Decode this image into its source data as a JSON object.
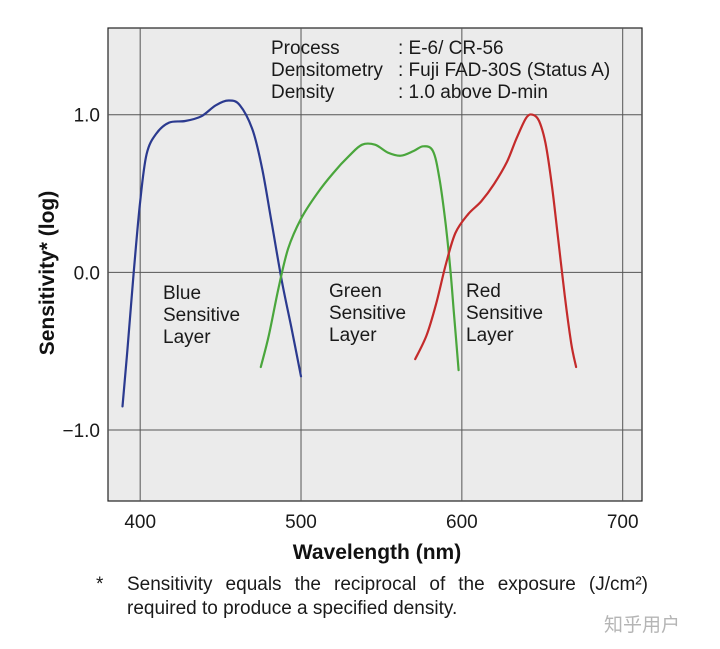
{
  "chart_data": {
    "type": "line",
    "xlabel": "Wavelength (nm)",
    "ylabel": "Sensitivity* (log)",
    "xlim": [
      380,
      712
    ],
    "ylim": [
      -1.45,
      1.55
    ],
    "x_ticks": [
      400,
      500,
      600,
      700
    ],
    "x_tick_labels": [
      "400",
      "500",
      "600",
      "700"
    ],
    "y_ticks": [
      1.0,
      0.0,
      -1.0
    ],
    "y_tick_labels": [
      "1.0",
      "0.0",
      "−1.0"
    ],
    "grid": true,
    "info": [
      {
        "key": "Process",
        "value": ": E-6/ CR-56"
      },
      {
        "key": "Densitometry",
        "value": ": Fuji FAD-30S (Status A)"
      },
      {
        "key": "Density",
        "value": ": 1.0 above D-min"
      }
    ],
    "series": [
      {
        "label_lines": [
          "Blue",
          "Sensitive",
          "Layer"
        ],
        "color": "#2b3a8f",
        "points": [
          [
            389,
            -0.85
          ],
          [
            392,
            -0.5
          ],
          [
            396,
            0.0
          ],
          [
            400,
            0.45
          ],
          [
            404,
            0.75
          ],
          [
            410,
            0.88
          ],
          [
            418,
            0.95
          ],
          [
            428,
            0.96
          ],
          [
            438,
            0.99
          ],
          [
            447,
            1.06
          ],
          [
            455,
            1.09
          ],
          [
            462,
            1.06
          ],
          [
            470,
            0.9
          ],
          [
            476,
            0.65
          ],
          [
            482,
            0.3
          ],
          [
            488,
            -0.05
          ],
          [
            494,
            -0.35
          ],
          [
            500,
            -0.66
          ]
        ]
      },
      {
        "label_lines": [
          "Green",
          "Sensitive",
          "Layer"
        ],
        "color": "#4aa63c",
        "points": [
          [
            475,
            -0.6
          ],
          [
            480,
            -0.4
          ],
          [
            486,
            -0.1
          ],
          [
            492,
            0.15
          ],
          [
            500,
            0.34
          ],
          [
            510,
            0.5
          ],
          [
            520,
            0.63
          ],
          [
            530,
            0.74
          ],
          [
            538,
            0.81
          ],
          [
            546,
            0.81
          ],
          [
            554,
            0.76
          ],
          [
            562,
            0.74
          ],
          [
            570,
            0.77
          ],
          [
            576,
            0.8
          ],
          [
            582,
            0.77
          ],
          [
            586,
            0.6
          ],
          [
            590,
            0.3
          ],
          [
            593,
            0.0
          ],
          [
            595,
            -0.25
          ],
          [
            598,
            -0.62
          ]
        ]
      },
      {
        "label_lines": [
          "Red",
          "Sensitive",
          "Layer"
        ],
        "color": "#c42b2b",
        "points": [
          [
            571,
            -0.55
          ],
          [
            578,
            -0.4
          ],
          [
            584,
            -0.2
          ],
          [
            590,
            0.05
          ],
          [
            596,
            0.25
          ],
          [
            604,
            0.37
          ],
          [
            612,
            0.45
          ],
          [
            620,
            0.56
          ],
          [
            628,
            0.7
          ],
          [
            634,
            0.85
          ],
          [
            640,
            0.98
          ],
          [
            644,
            1.0
          ],
          [
            648,
            0.96
          ],
          [
            652,
            0.82
          ],
          [
            656,
            0.55
          ],
          [
            660,
            0.2
          ],
          [
            664,
            -0.15
          ],
          [
            668,
            -0.45
          ],
          [
            671,
            -0.6
          ]
        ]
      }
    ]
  },
  "footnote": {
    "marker": "*",
    "text": "Sensitivity equals the reciprocal of the exposure (J/cm²) required to produce a specified density."
  },
  "watermark": "知乎用户"
}
